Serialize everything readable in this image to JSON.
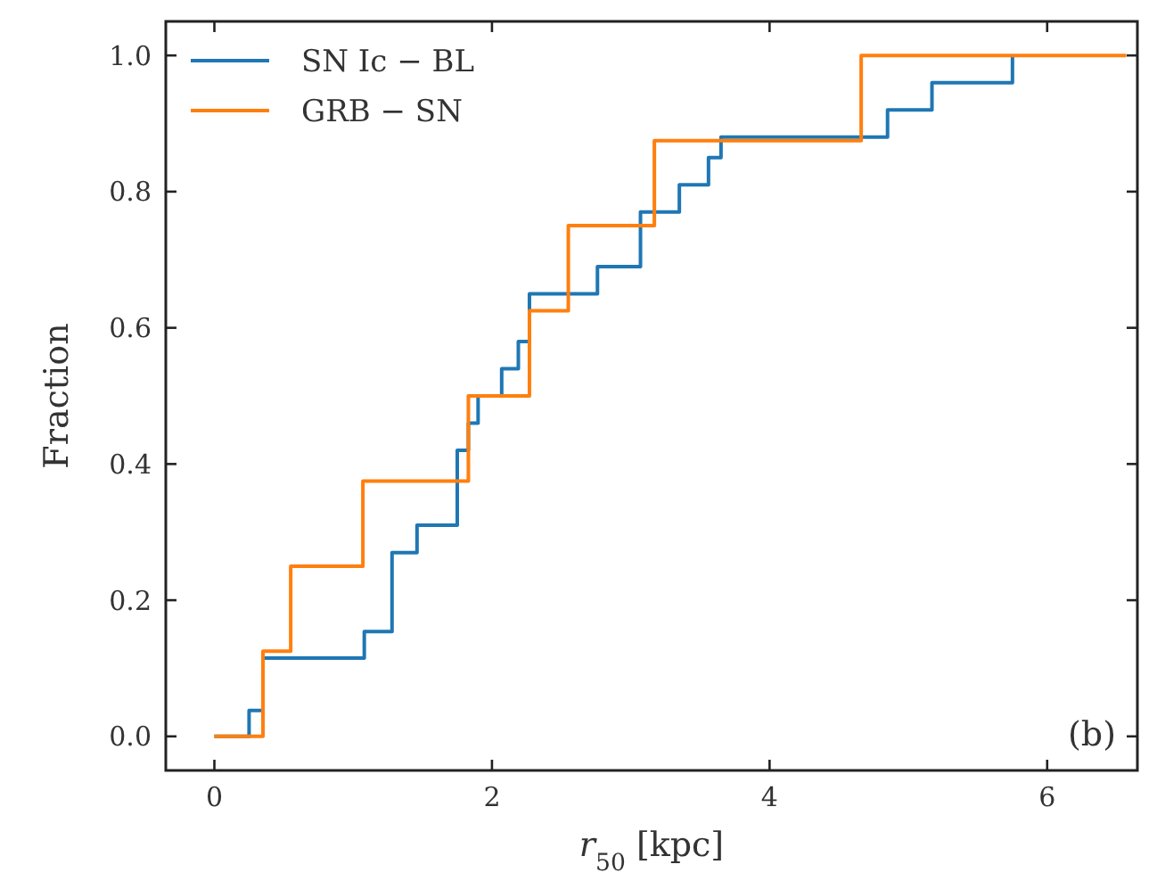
{
  "chart_data": {
    "type": "step",
    "xlabel": "r$_{50}$ [kpc]",
    "ylabel": "Fraction",
    "xlim": [
      -0.35,
      6.65
    ],
    "xticks": [
      0,
      2,
      4,
      6
    ],
    "ylim": [
      -0.05,
      1.05
    ],
    "yticks": [
      {
        "value": 0,
        "label": "0.0"
      },
      {
        "value": 0.2,
        "label": "0.2"
      },
      {
        "value": 0.4,
        "label": "0.4"
      },
      {
        "value": 0.6,
        "label": "0.6"
      },
      {
        "value": 0.8,
        "label": "0.8"
      },
      {
        "value": 1,
        "label": "1.0"
      }
    ],
    "legend": "top left",
    "grid": false,
    "line_style": "solid",
    "annotations": [
      "(b)"
    ],
    "series": [
      {
        "name": "SN Ic − BL",
        "color": "#1f77b4",
        "x": [
          0,
          0.25,
          0.35,
          1.08,
          1.28,
          1.46,
          1.75,
          1.83,
          1.9,
          2.07,
          2.19,
          2.27,
          2.76,
          3.07,
          3.35,
          3.56,
          3.65,
          4.85,
          5.17,
          5.75
        ],
        "values": [
          0,
          0.038,
          0.115,
          0.154,
          0.27,
          0.31,
          0.42,
          0.46,
          0.5,
          0.54,
          0.58,
          0.65,
          0.69,
          0.77,
          0.81,
          0.85,
          0.88,
          0.92,
          0.96,
          1.0
        ]
      },
      {
        "name": "GRB − SN",
        "color": "#ff7f0e",
        "x": [
          0,
          0.35,
          0.55,
          1.07,
          1.83,
          2.27,
          2.55,
          3.17,
          4.66,
          6.57
        ],
        "values": [
          0,
          0.125,
          0.25,
          0.375,
          0.5,
          0.625,
          0.75,
          0.875,
          1.0,
          1.0
        ]
      }
    ]
  }
}
